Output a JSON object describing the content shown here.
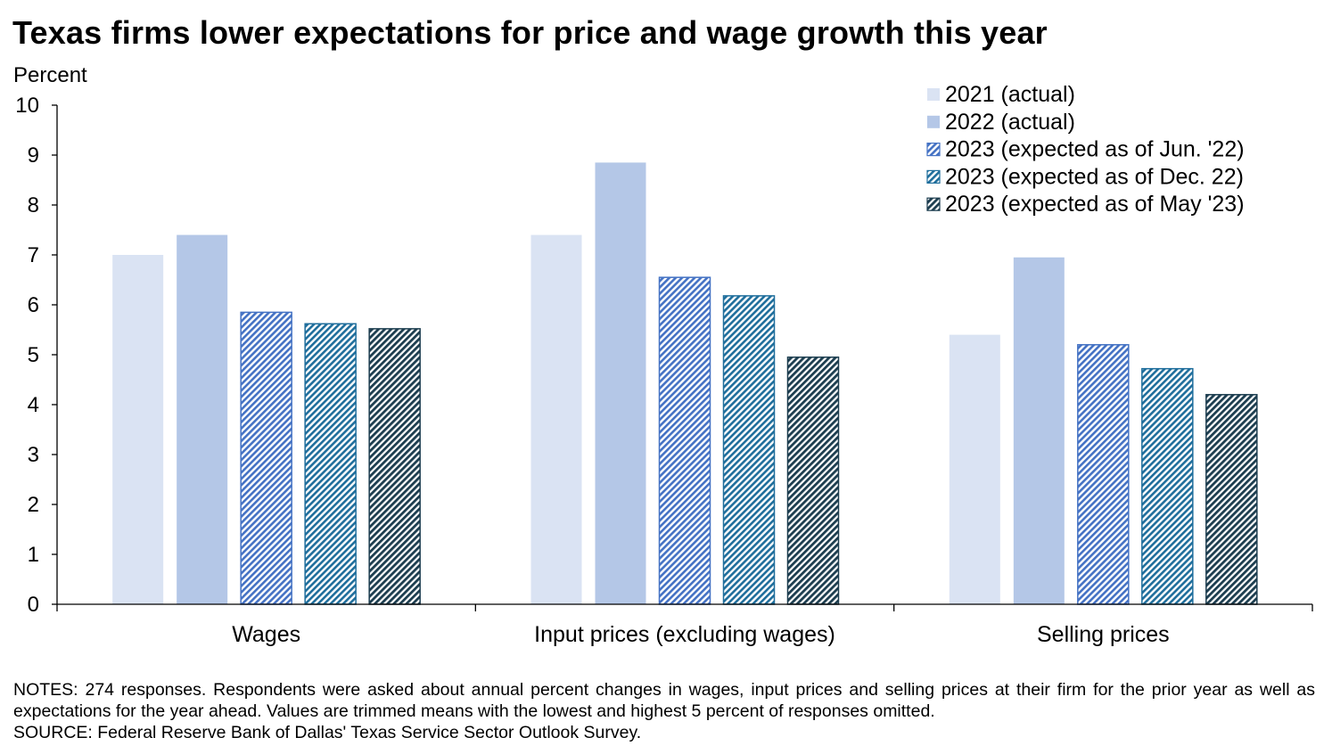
{
  "title": "Texas firms lower expectations for price and wage growth this year",
  "notes": {
    "line1": "NOTES: 274 responses. Respondents were asked about annual percent changes in wages, input prices and selling prices at their firm for the prior year as well as expectations for the year ahead. Values are trimmed means with the lowest and highest 5 percent of responses omitted.",
    "source": "SOURCE: Federal Reserve Bank of Dallas' Texas Service Sector Outlook Survey."
  },
  "chart_data": {
    "type": "bar",
    "title": "Texas firms lower expectations for price and wage growth this year",
    "ylabel": "Percent",
    "xlabel": "",
    "ylim": [
      0,
      10
    ],
    "yticks": [
      0,
      1,
      2,
      3,
      4,
      5,
      6,
      7,
      8,
      9,
      10
    ],
    "grid": false,
    "legend_position": "top-right",
    "categories": [
      "Wages",
      "Input prices (excluding wages)",
      "Selling prices"
    ],
    "series": [
      {
        "name": "2021 (actual)",
        "values": [
          7.0,
          7.4,
          5.4
        ],
        "color": "#dae3f3",
        "pattern": "solid"
      },
      {
        "name": "2022 (actual)",
        "values": [
          7.4,
          8.85,
          6.95
        ],
        "color": "#b4c7e7",
        "pattern": "solid"
      },
      {
        "name": "2023 (expected as of Jun. '22)",
        "values": [
          5.85,
          6.55,
          5.2
        ],
        "color": "#4472c4",
        "pattern": "hatch"
      },
      {
        "name": "2023 (expected as of Dec. 22)",
        "values": [
          5.62,
          6.18,
          4.72
        ],
        "color": "#1f6e9c",
        "pattern": "hatch"
      },
      {
        "name": "2023 (expected as of May '23)",
        "values": [
          5.52,
          4.95,
          4.2
        ],
        "color": "#1c3d4f",
        "pattern": "hatch"
      }
    ]
  }
}
